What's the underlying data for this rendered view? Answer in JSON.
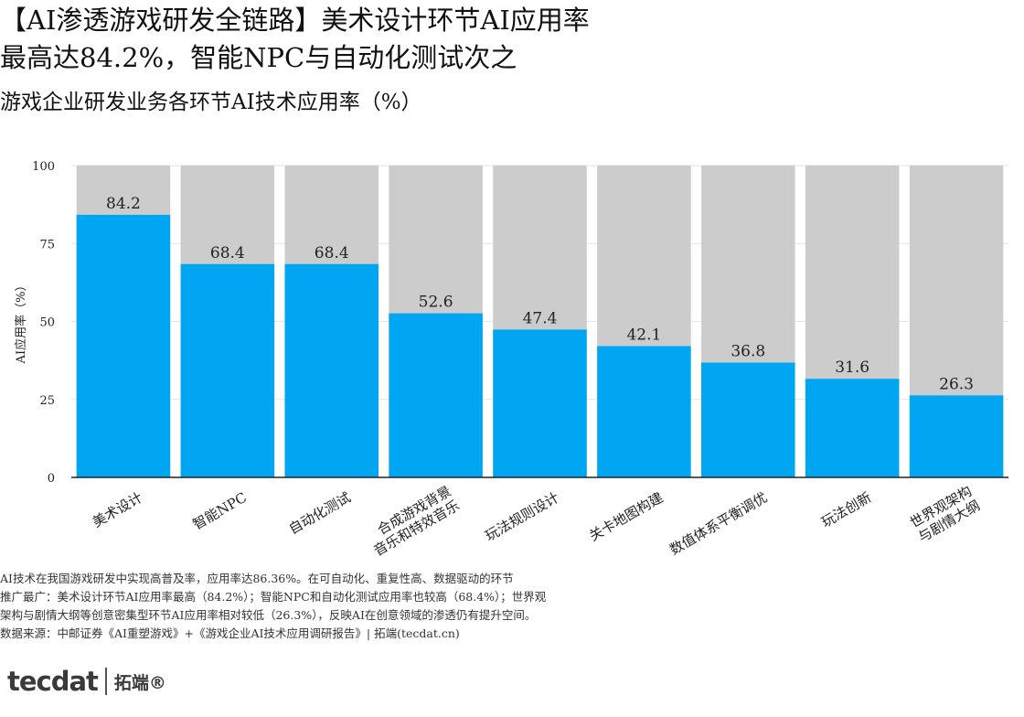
{
  "title_lines": [
    "【AI渗透游戏研发全链路】美术设计环节AI应用率",
    "最高达84.2%，智能NPC与自动化测试次之"
  ],
  "subtitle": "游戏企业研发业务各环节AI技术应用率（%）",
  "chart_data": {
    "type": "bar",
    "categories": [
      [
        "美术设计"
      ],
      [
        "智能NPC"
      ],
      [
        "自动化测试"
      ],
      [
        "合成游戏背景",
        "音乐和特效音乐"
      ],
      [
        "玩法规则设计"
      ],
      [
        "关卡地图构建"
      ],
      [
        "数值体系平衡调优"
      ],
      [
        "玩法创新"
      ],
      [
        "世界观架构",
        "与剧情大纲"
      ]
    ],
    "values": [
      84.2,
      68.4,
      68.4,
      52.6,
      47.4,
      42.1,
      36.8,
      31.6,
      26.3
    ],
    "value_labels": [
      "84.2",
      "68.4",
      "68.4",
      "52.6",
      "47.4",
      "42.1",
      "36.8",
      "31.6",
      "26.3"
    ],
    "background_value": 100,
    "ylim": [
      0,
      100
    ],
    "yticks": [
      "0",
      "25",
      "50",
      "75",
      "100"
    ],
    "ylabel": "AI应用率（%）",
    "xlabel": "",
    "grid": true,
    "colors": {
      "bar": "#00a6f2",
      "background_bar": "#cccccc",
      "grid": "#e6e6e6"
    }
  },
  "notes": [
    "AI技术在我国游戏研发中实现高普及率，应用率达86.36%。在可自动化、重复性高、数据驱动的环节",
    "推广最广：美术设计环节AI应用率最高（84.2%）；智能NPC和自动化测试应用率也较高（68.4%）；世界观",
    "架构与剧情大纲等创意密集型环节AI应用率相对较低（26.3%），反映AI在创意领域的渗透仍有提升空间。",
    "数据来源：中邮证券《AI重塑游戏》+《游戏企业AI技术应用调研报告》| 拓端(tecdat.cn)"
  ],
  "logo": {
    "mark": "tecdat",
    "cn": "拓端®"
  }
}
